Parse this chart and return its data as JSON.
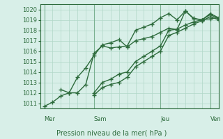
{
  "title": "",
  "xlabel": "Pression niveau de la mer( hPa )",
  "ylabel": "",
  "ylim": [
    1010.5,
    1020.5
  ],
  "yticks": [
    1011,
    1012,
    1013,
    1014,
    1015,
    1016,
    1017,
    1018,
    1019,
    1020
  ],
  "bg_color": "#d8efe8",
  "grid_color": "#b0d8c8",
  "line_color": "#2d6b3c",
  "vline_color": "#7ab090",
  "day_labels": [
    "Mer",
    "Sam",
    "Jeu",
    "Ven"
  ],
  "day_positions": [
    0,
    6,
    14,
    20
  ],
  "series": [
    [
      1010.7,
      1011.1,
      1011.7,
      1012.0,
      1012.0,
      1012.8,
      1015.8,
      1016.5,
      1016.3,
      1016.4,
      1016.5,
      1018.0,
      1018.3,
      1018.6,
      1019.2,
      1019.6,
      1019.0,
      1019.85,
      1019.1,
      1019.0,
      1019.1,
      1019.2
    ],
    [
      null,
      null,
      1012.3,
      1012.0,
      1013.5,
      1014.4,
      1015.6,
      1016.6,
      1016.8,
      1017.1,
      1016.4,
      1017.0,
      1017.2,
      1017.4,
      1017.8,
      1018.2,
      1018.05,
      1019.85,
      1019.15,
      1019.0,
      1019.6,
      1019.2
    ],
    [
      null,
      null,
      null,
      null,
      null,
      null,
      1012.0,
      1013.0,
      1013.3,
      1013.8,
      1014.0,
      1015.0,
      1015.5,
      1016.0,
      1016.5,
      1018.0,
      1018.1,
      1018.5,
      1018.8,
      1019.0,
      1019.5,
      1019.1
    ],
    [
      null,
      null,
      null,
      null,
      null,
      null,
      1011.8,
      1012.5,
      1012.8,
      1013.0,
      1013.5,
      1014.5,
      1015.0,
      1015.5,
      1016.0,
      1017.5,
      1017.8,
      1018.2,
      1018.6,
      1018.9,
      1019.3,
      1019.0
    ]
  ],
  "marker": "+",
  "marker_size": 4,
  "line_width": 1.0
}
